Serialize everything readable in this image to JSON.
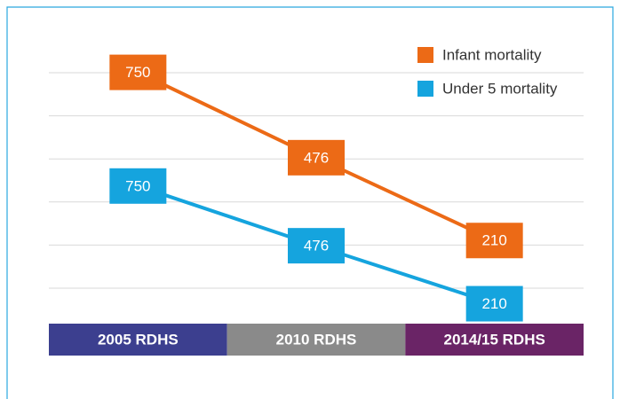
{
  "chart_data": {
    "type": "line",
    "categories": [
      "2005 RDHS",
      "2010 RDHS",
      "2014/15 RDHS"
    ],
    "band_colors": [
      "#3c3f8f",
      "#8a8a8a",
      "#6a2466"
    ],
    "series": [
      {
        "name": "Infant mortality",
        "color": "#ec6a16",
        "values": [
          750,
          476,
          210
        ]
      },
      {
        "name": "Under 5 mortality",
        "color": "#15a4de",
        "values": [
          750,
          476,
          210
        ],
        "axis": "y2"
      }
    ],
    "ylim": [
      0,
      840
    ],
    "y2lim": [
      200,
      1400
    ],
    "grid": true,
    "legend": "top-right"
  }
}
